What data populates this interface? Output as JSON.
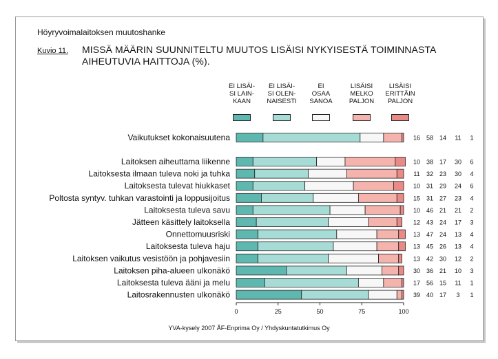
{
  "header": {
    "project": "Höyryvoimalaitoksen muutoshanke",
    "figure_label": "Kuvio 11.",
    "title_line1": "MISSÄ MÄÄRIN SUUNNITELTU MUUTOS LISÄISI NYKYISESTÄ TOIMINNASTA",
    "title_line2": "AIHEUTUVIA HAITTOJA (%)."
  },
  "legend": [
    {
      "lines": [
        "EI LISÄI-",
        "SI LAIN-",
        "KAAN"
      ],
      "color": "#5fb8b0"
    },
    {
      "lines": [
        "EI LISÄI-",
        "SI OLEN-",
        "NAISESTI"
      ],
      "color": "#a7dcd6"
    },
    {
      "lines": [
        "EI",
        "OSAA",
        "SANOA"
      ],
      "color": "#f7f7f7"
    },
    {
      "lines": [
        "LISÄISI",
        "MELKO",
        "PALJON"
      ],
      "color": "#f4b3ad"
    },
    {
      "lines": [
        "LISÄISI",
        "ERITTÄIN",
        "PALJON"
      ],
      "color": "#e98a86"
    }
  ],
  "footer": {
    "source": "YVA-kysely 2007  ÅF-Enprima Oy / Yhdyskuntatutkimus Oy"
  },
  "chart_data": {
    "type": "bar",
    "orientation": "horizontal",
    "stacked": true,
    "unit": "%",
    "xlim": [
      0,
      100
    ],
    "xticks": [
      0,
      25,
      50,
      75,
      100
    ],
    "categories": [
      "Vaikutukset kokonaisuutena",
      "Laitoksen aiheuttama liikenne",
      "Laitoksesta ilmaan tuleva noki ja tuhka",
      "Laitoksesta tulevat hiukkaset",
      "Poltosta syntyv. tuhkan varastointi ja loppusijoitus",
      "Laitoksesta tuleva savu",
      "Jätteen käsittely laitoksella",
      "Onnettomuusriski",
      "Laitoksesta tuleva haju",
      "Laitoksen vaikutus vesistöön ja pohjavesiin",
      "Laitoksen piha-alueen ulkonäkö",
      "Laitoksesta tuleva ääni ja melu",
      "Laitosrakennusten ulkonäkö"
    ],
    "group_break_after": 0,
    "series": [
      {
        "name": "EI LISÄISI LAINKAAN",
        "values": [
          16,
          10,
          11,
          10,
          15,
          10,
          12,
          13,
          13,
          13,
          30,
          17,
          39
        ]
      },
      {
        "name": "EI LISÄISI OLENNAISESTI",
        "values": [
          58,
          38,
          32,
          31,
          31,
          46,
          43,
          47,
          45,
          42,
          36,
          56,
          40
        ]
      },
      {
        "name": "EI OSAA SANOA",
        "values": [
          14,
          17,
          23,
          29,
          27,
          21,
          24,
          24,
          26,
          30,
          21,
          15,
          17
        ]
      },
      {
        "name": "LISÄISI MELKO PALJON",
        "values": [
          11,
          30,
          30,
          24,
          23,
          21,
          17,
          13,
          13,
          12,
          10,
          11,
          3
        ]
      },
      {
        "name": "LISÄISI ERITTÄIN PALJON",
        "values": [
          1,
          6,
          4,
          6,
          4,
          2,
          3,
          4,
          4,
          2,
          3,
          1,
          1
        ]
      }
    ]
  }
}
